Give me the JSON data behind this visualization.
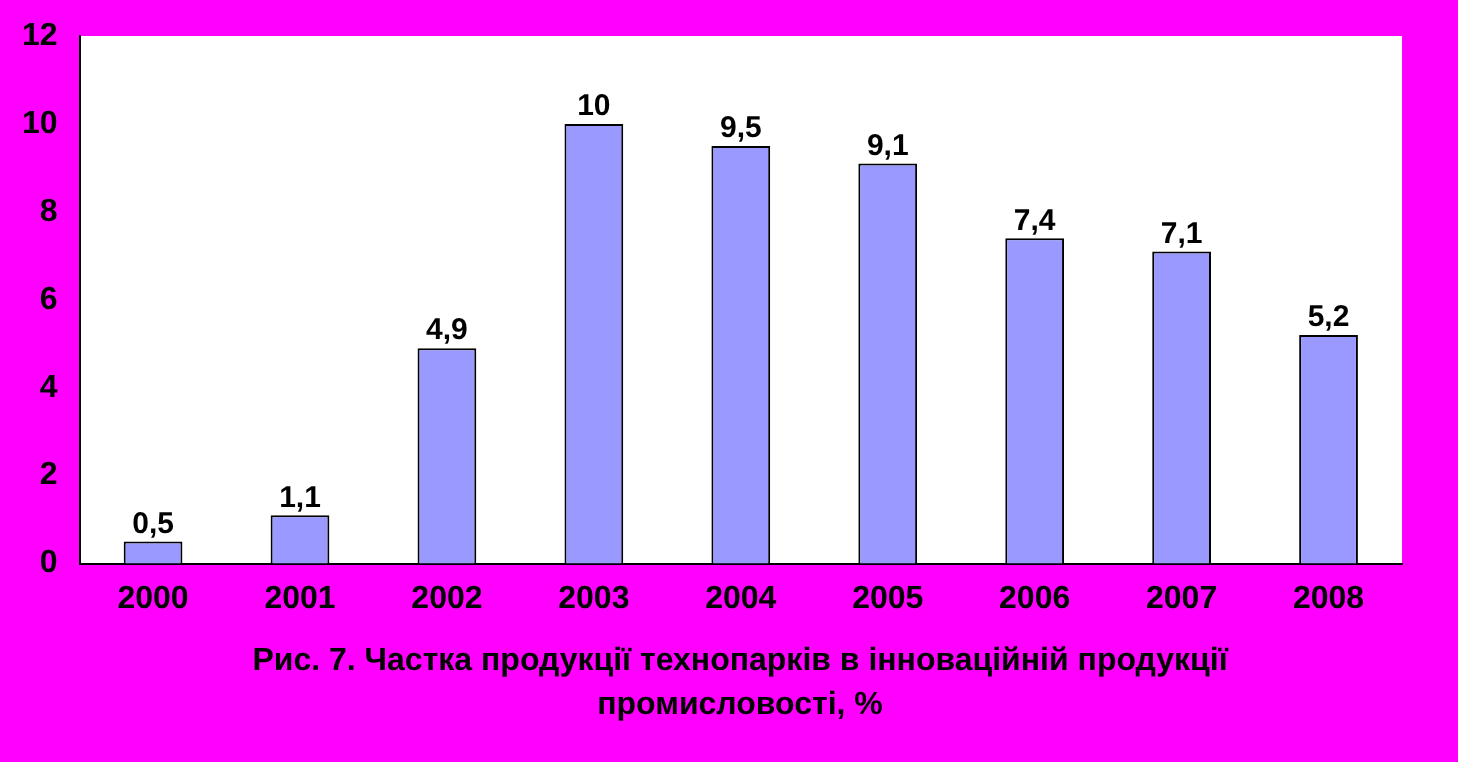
{
  "chart_data": {
    "type": "bar",
    "title": "Рис. 7. Частка продукції технопарків в інноваційній продукції промисловості, %",
    "categories": [
      "2000",
      "2001",
      "2002",
      "2003",
      "2004",
      "2005",
      "2006",
      "2007",
      "2008"
    ],
    "values": [
      0.5,
      1.1,
      4.9,
      10,
      9.5,
      9.1,
      7.4,
      7.1,
      5.2
    ],
    "value_labels": [
      "0,5",
      "1,1",
      "4,9",
      "10",
      "9,5",
      "9,1",
      "7,4",
      "7,1",
      "5,2"
    ],
    "color": "#9999ff",
    "ylim": [
      0,
      12
    ],
    "yticks": [
      0,
      2,
      4,
      6,
      8,
      10,
      12
    ],
    "grid": false
  }
}
